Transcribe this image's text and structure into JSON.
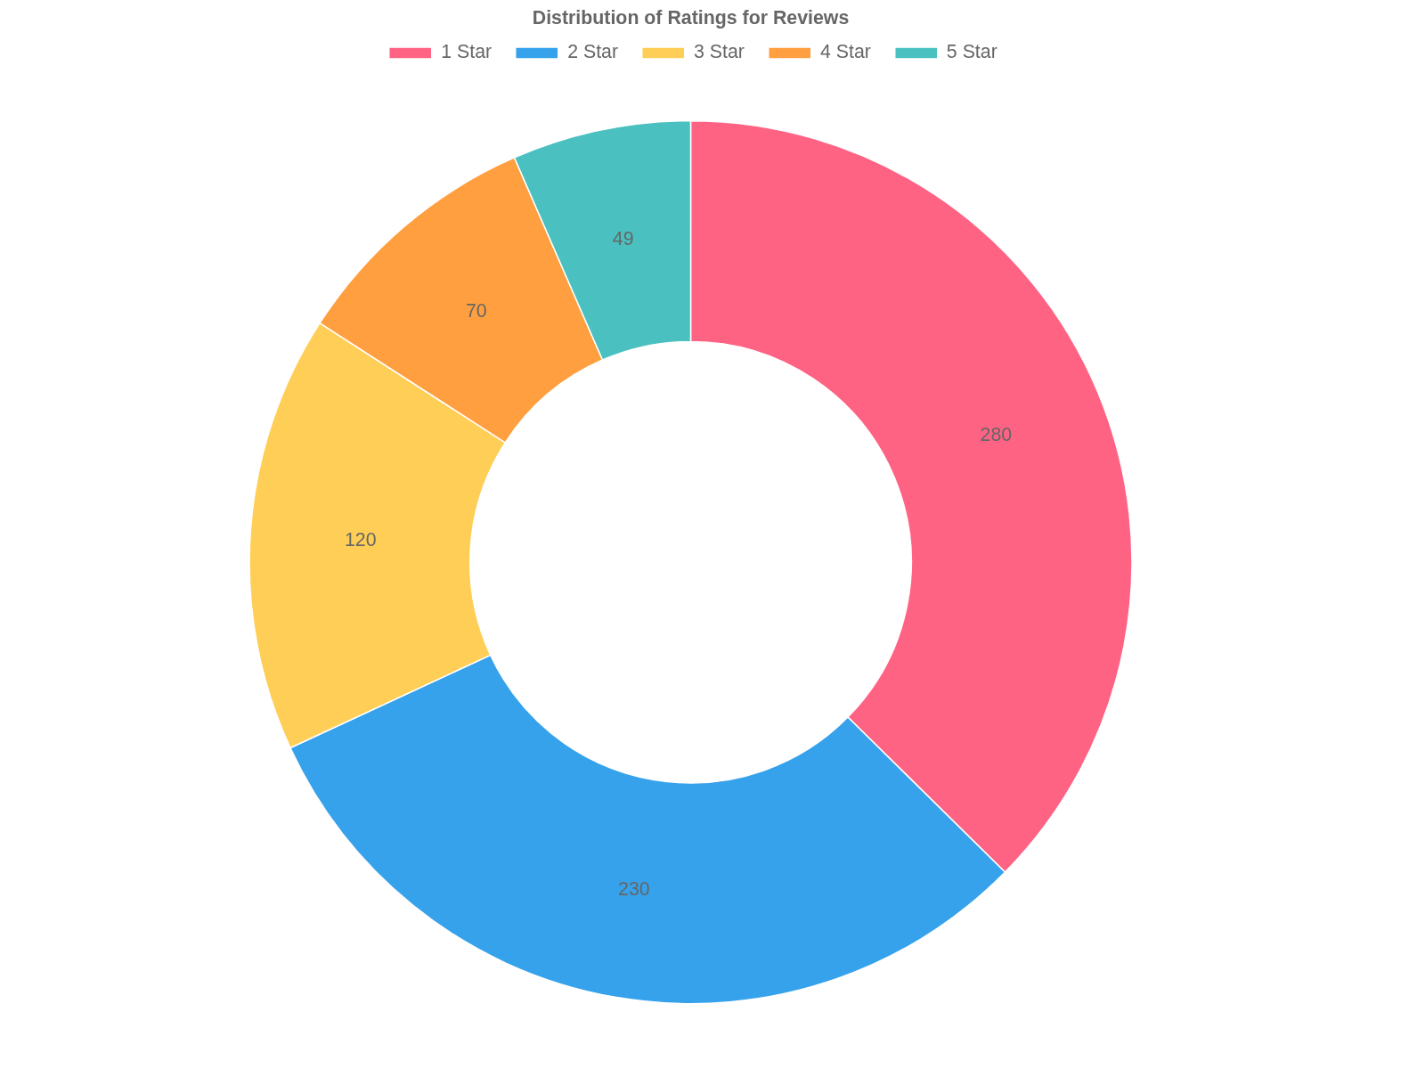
{
  "chart_data": {
    "type": "donut",
    "title": "Distribution of Ratings for Reviews",
    "categories": [
      "1 Star",
      "2 Star",
      "3 Star",
      "4 Star",
      "5 Star"
    ],
    "values": [
      280,
      230,
      120,
      70,
      49
    ],
    "colors": [
      "#ff6384",
      "#36a2eb",
      "#ffce56",
      "#ff9f40",
      "#4bc0c0"
    ],
    "data_labels": true,
    "legend": "top"
  }
}
